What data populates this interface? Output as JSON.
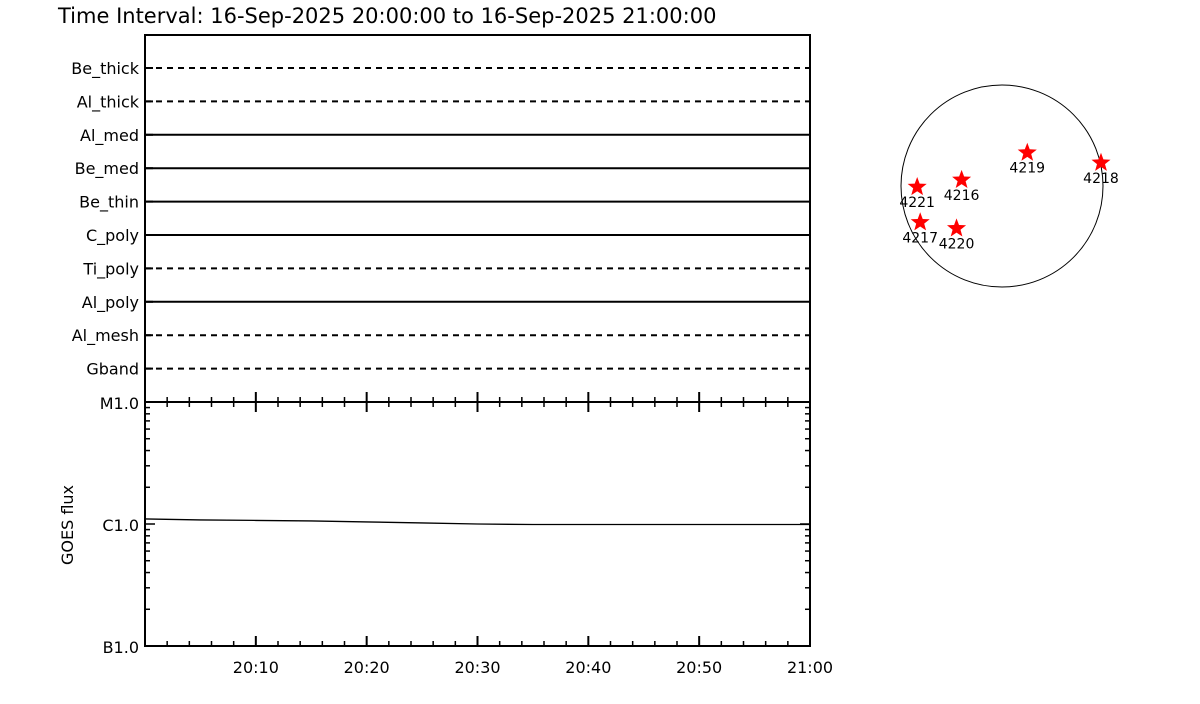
{
  "title": "Time Interval: 16-Sep-2025 20:00:00 to 16-Sep-2025 21:00:00",
  "chart_data": [
    {
      "type": "table",
      "description_rows": "filter timeline",
      "rows": [
        {
          "label": "Be_thick",
          "style": "dashed"
        },
        {
          "label": "Al_thick",
          "style": "dashed"
        },
        {
          "label": "Al_med",
          "style": "solid"
        },
        {
          "label": "Be_med",
          "style": "solid"
        },
        {
          "label": "Be_thin",
          "style": "solid"
        },
        {
          "label": "C_poly",
          "style": "solid"
        },
        {
          "label": "Ti_poly",
          "style": "dashed"
        },
        {
          "label": "Al_poly",
          "style": "solid"
        },
        {
          "label": "Al_mesh",
          "style": "dashed"
        },
        {
          "label": "Gband",
          "style": "dashed"
        }
      ]
    },
    {
      "type": "line",
      "ylabel": "GOES flux",
      "yscale": "log",
      "ylim": [
        1e-07,
        1e-05
      ],
      "yticks": [
        {
          "value": 1e-07,
          "label": "B1.0"
        },
        {
          "value": 1e-06,
          "label": "C1.0"
        },
        {
          "value": 1e-05,
          "label": "M1.0"
        }
      ],
      "xlim": [
        "20:00",
        "21:00"
      ],
      "xticks": [
        "20:10",
        "20:20",
        "20:30",
        "20:40",
        "20:50",
        "21:00"
      ],
      "series": [
        {
          "x": [
            "20:00",
            "20:05",
            "20:10",
            "20:15",
            "20:20",
            "20:25",
            "20:30",
            "20:35",
            "20:40",
            "20:45",
            "20:50",
            "20:55",
            "21:00"
          ],
          "values": [
            1.1e-06,
            1.08e-06,
            1.07e-06,
            1.06e-06,
            1.04e-06,
            1.02e-06,
            1e-06,
            9.9e-07,
            9.9e-07,
            9.9e-07,
            9.9e-07,
            9.9e-07,
            9.9e-07
          ]
        }
      ],
      "grid": false
    },
    {
      "type": "scatter",
      "description": "solar disk with active regions",
      "marker_color": "#ff0000",
      "marker": "star",
      "points": [
        {
          "label": "4219",
          "x": 0.25,
          "y": 0.34
        },
        {
          "label": "4218",
          "x": 0.98,
          "y": 0.24
        },
        {
          "label": "4221",
          "x": -0.84,
          "y": 0.0
        },
        {
          "label": "4216",
          "x": -0.4,
          "y": 0.07
        },
        {
          "label": "4217",
          "x": -0.81,
          "y": -0.35
        },
        {
          "label": "4220",
          "x": -0.45,
          "y": -0.41
        }
      ]
    }
  ]
}
